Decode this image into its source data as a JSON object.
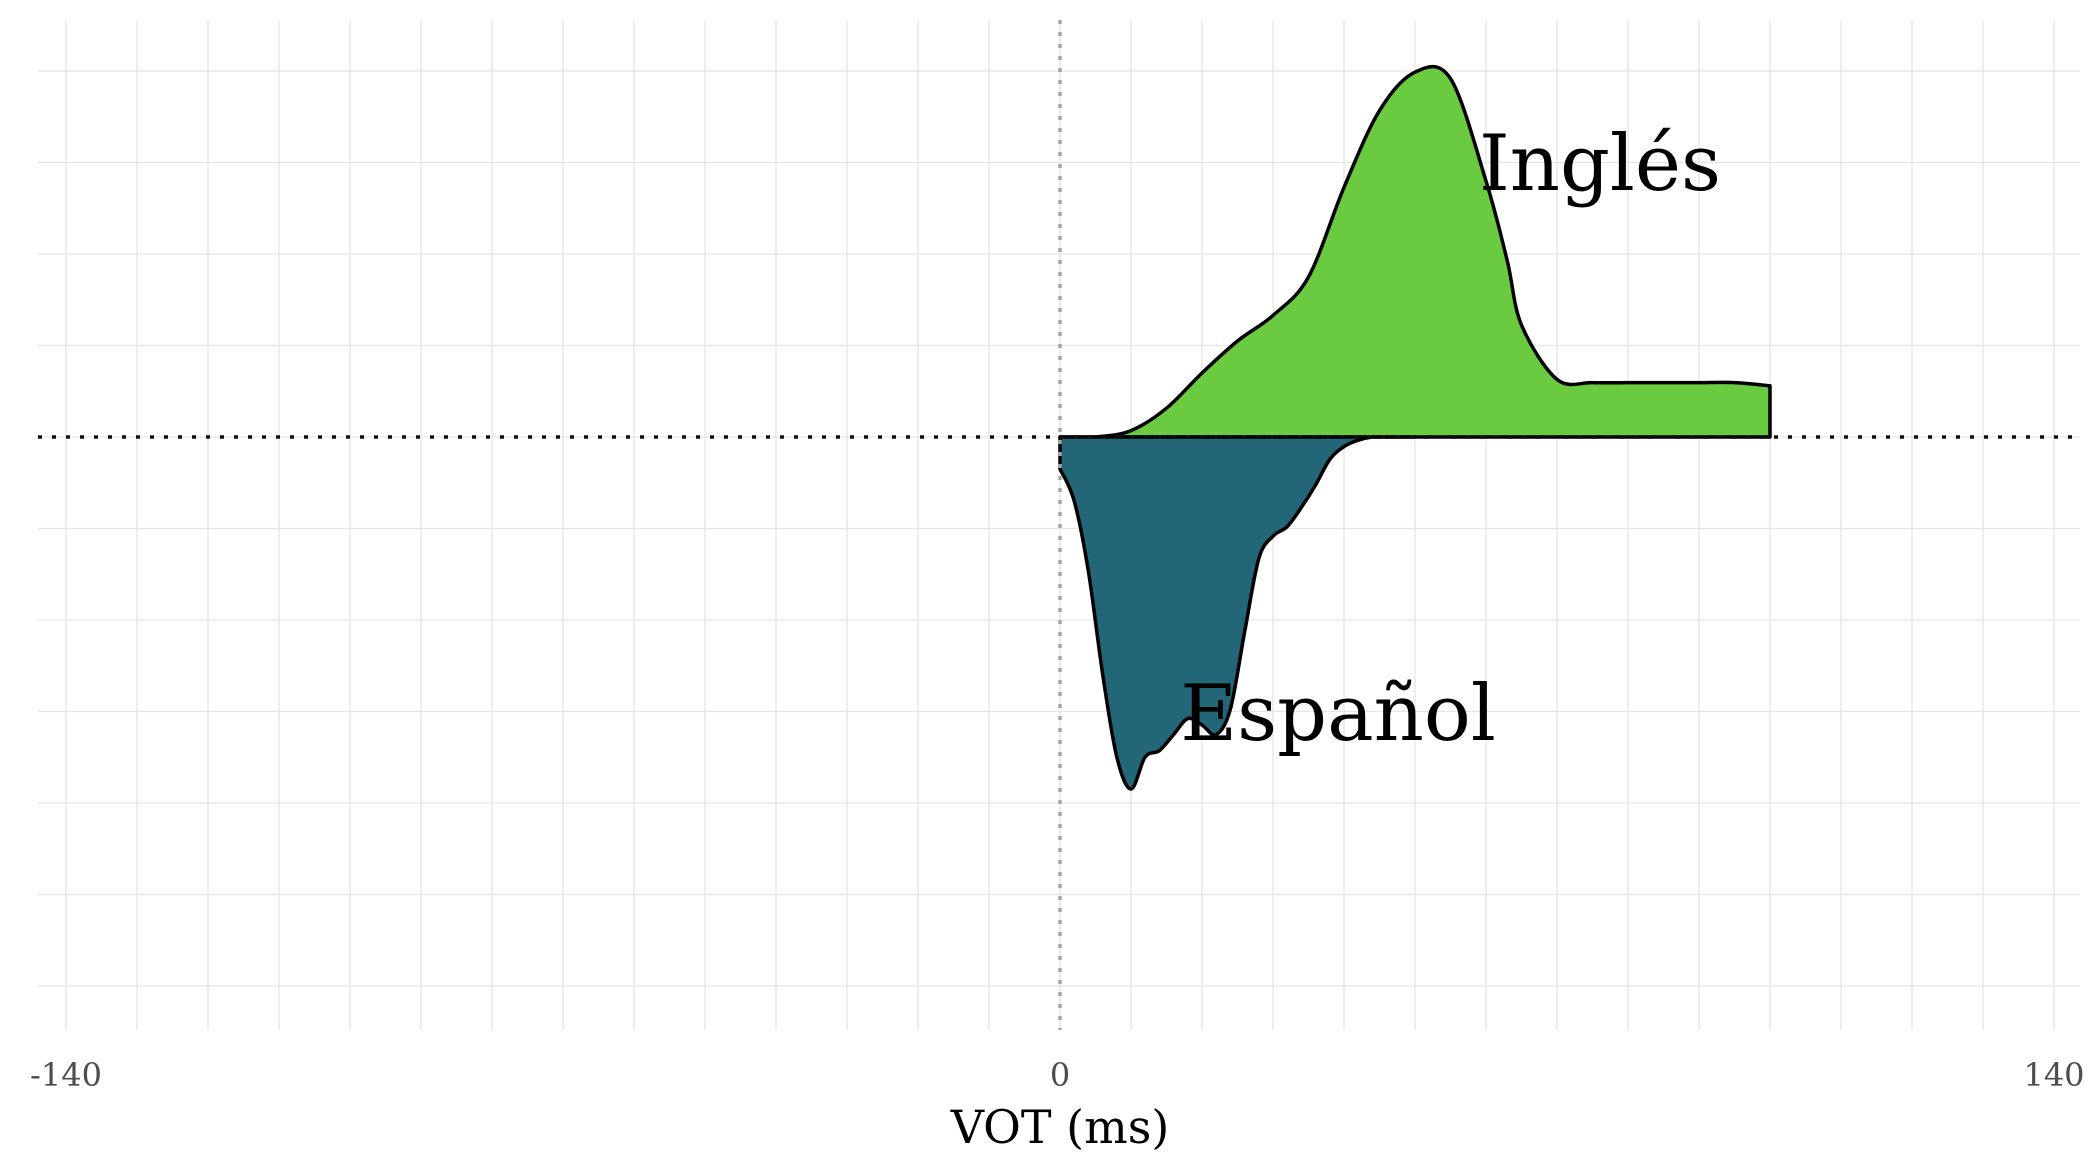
{
  "chart_data": {
    "type": "area",
    "title": "",
    "xlabel": "VOT (ms)",
    "ylabel": "",
    "xlim": [
      -150,
      150
    ],
    "ylim": [
      -1.1,
      1.1
    ],
    "x_ticks": [
      -140,
      0,
      140
    ],
    "grid": true,
    "reference_lines": {
      "x": 0,
      "y": 0
    },
    "series": [
      {
        "name": "Inglés",
        "direction": "up",
        "color": "#6acb41",
        "x": [
          0,
          5,
          10,
          15,
          20,
          25,
          30,
          35,
          40,
          45,
          50,
          55,
          60,
          63,
          65,
          70,
          75,
          80,
          85,
          90,
          95,
          100
        ],
        "y": [
          0.0,
          0.0,
          0.02,
          0.09,
          0.2,
          0.3,
          0.38,
          0.5,
          0.78,
          1.02,
          1.14,
          1.12,
          0.8,
          0.55,
          0.35,
          0.18,
          0.17,
          0.17,
          0.17,
          0.17,
          0.17,
          0.16
        ]
      },
      {
        "name": "Español",
        "direction": "down",
        "color": "#226678",
        "x": [
          0,
          2,
          4,
          6,
          8,
          10,
          12,
          14,
          16,
          18,
          20,
          22,
          24,
          26,
          28,
          30,
          32,
          34,
          36,
          38,
          40,
          42,
          44,
          46,
          48,
          50
        ],
        "y": [
          0.1,
          0.2,
          0.42,
          0.74,
          1.0,
          1.1,
          1.0,
          0.98,
          0.93,
          0.88,
          0.9,
          0.93,
          0.85,
          0.61,
          0.38,
          0.31,
          0.28,
          0.22,
          0.15,
          0.07,
          0.03,
          0.01,
          0.0,
          0.0,
          0.0,
          0.0
        ]
      }
    ]
  }
}
